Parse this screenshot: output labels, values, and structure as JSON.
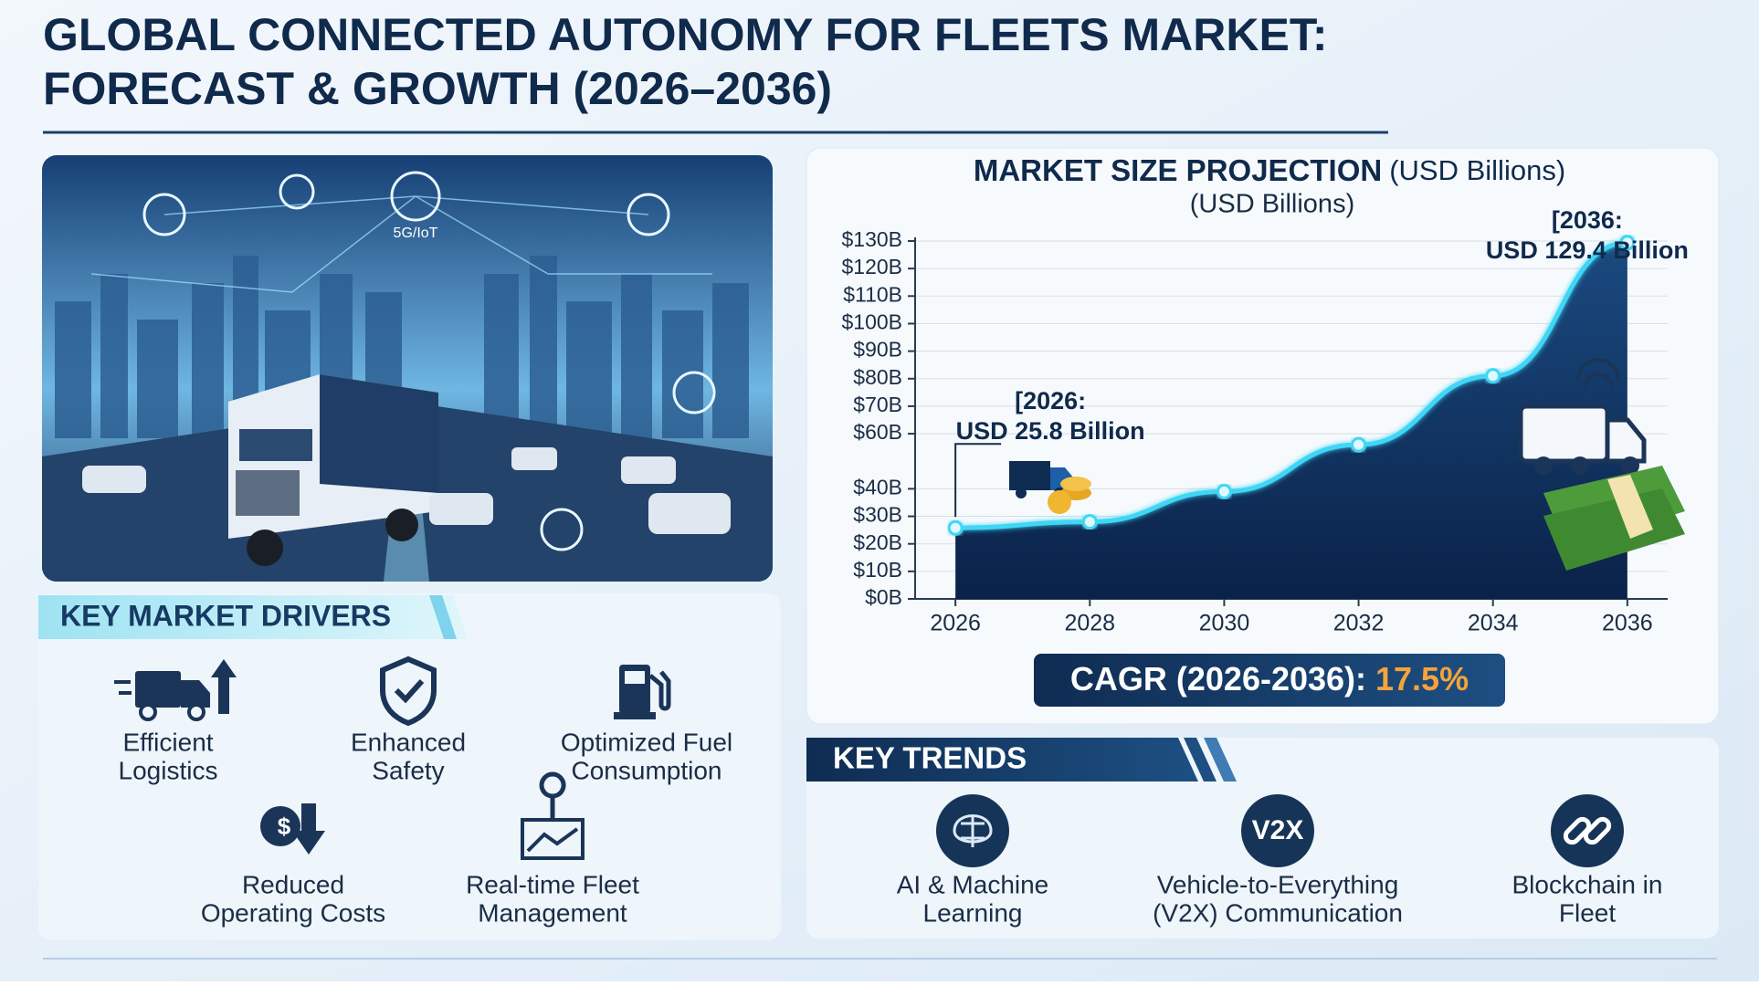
{
  "header": {
    "title_lines": [
      "GLOBAL CONNECTED AUTONOMY FOR FLEETS MARKET:",
      "FORECAST & GROWTH (2026–2036)"
    ]
  },
  "hero": {
    "labels": [
      "5G/IoT"
    ]
  },
  "chart_data": {
    "type": "line",
    "title": "MARKET SIZE PROJECTION",
    "title_unit": "(USD Billions)",
    "subtitle": "(USD Billions)",
    "x": [
      2026,
      2028,
      2030,
      2032,
      2034,
      2036
    ],
    "values": [
      25.8,
      28,
      39,
      56,
      81,
      129.4
    ],
    "color": "#3fd6f5",
    "area_color": "#0d2c57",
    "xlim": [
      2025.4,
      2036.6
    ],
    "xticks": [
      2026,
      2028,
      2030,
      2032,
      2034,
      2036
    ],
    "ylim": [
      0,
      130
    ],
    "yticks": [
      {
        "value": 0,
        "label": "$0B"
      },
      {
        "value": 10,
        "label": "$10B"
      },
      {
        "value": 20,
        "label": "$20B"
      },
      {
        "value": 30,
        "label": "$30B"
      },
      {
        "value": 40,
        "label": "$40B"
      },
      {
        "value": 60,
        "label": "$60B"
      },
      {
        "value": 70,
        "label": "$70B"
      },
      {
        "value": 80,
        "label": "$80B"
      },
      {
        "value": 90,
        "label": "$90B"
      },
      {
        "value": 100,
        "label": "$100B"
      },
      {
        "value": 110,
        "label": "$110B"
      },
      {
        "value": 120,
        "label": "$120B"
      },
      {
        "value": 130,
        "label": "$130B"
      }
    ],
    "grid": true,
    "annotations": [
      [
        "[2026:",
        "USD 25.8 Billion"
      ],
      [
        "[2036:",
        "USD 129.4 Billion"
      ]
    ]
  },
  "cagr": {
    "label": "CAGR (2026-2036):",
    "value": "17.5%"
  },
  "drivers": {
    "title": "KEY MARKET DRIVERS",
    "items": [
      [
        "Efficient",
        "Logistics"
      ],
      [
        "Enhanced",
        "Safety"
      ],
      [
        "Optimized Fuel",
        "Consumption"
      ],
      [
        "Reduced",
        "Operating Costs"
      ],
      [
        "Real-time Fleet",
        "Management"
      ]
    ]
  },
  "trends": {
    "title": "KEY TRENDS",
    "icon_text": "V2X",
    "items": [
      [
        "AI & Machine",
        "Learning"
      ],
      [
        "Vehicle-to-Everything",
        "(V2X) Communication"
      ],
      [
        "Blockchain in",
        "Fleet"
      ]
    ]
  }
}
